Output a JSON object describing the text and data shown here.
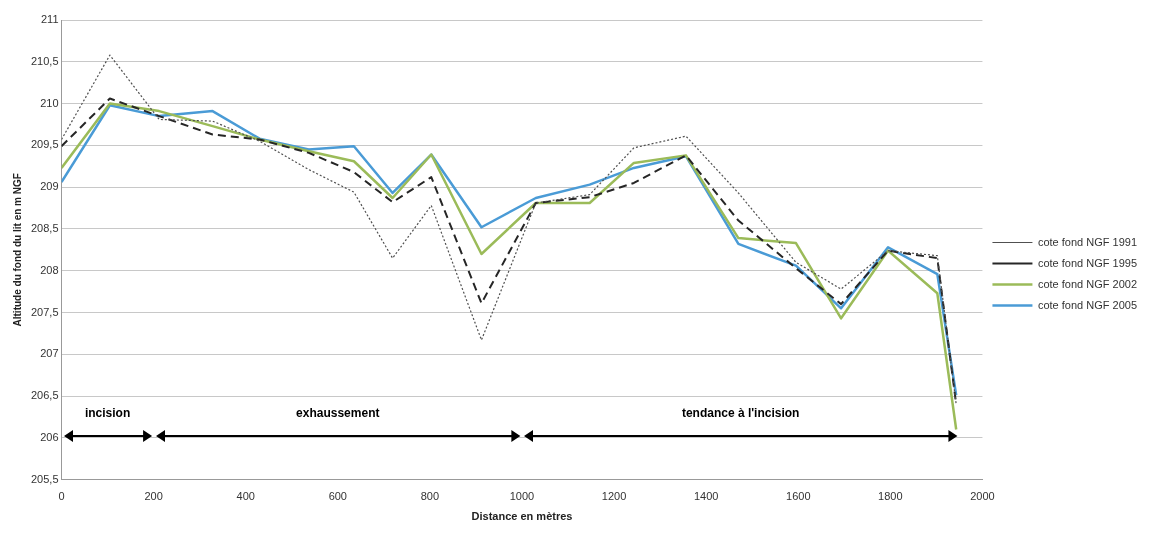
{
  "chart_data": {
    "type": "line",
    "xlabel": "Distance en mètres",
    "ylabel": "Altitude du fond du lit en m NGF",
    "x": [
      0,
      105,
      212,
      328,
      430,
      537,
      635,
      719,
      803,
      912,
      1030,
      1147,
      1243,
      1356,
      1470,
      1595,
      1693,
      1795,
      1902,
      1943
    ],
    "series": [
      {
        "name": "cote fond NGF 1991",
        "color": "#505050",
        "line_style": "dotted",
        "values": [
          209.57,
          210.58,
          209.81,
          209.79,
          209.55,
          209.21,
          208.94,
          208.15,
          208.78,
          207.17,
          208.81,
          208.91,
          209.47,
          209.61,
          208.93,
          208.1,
          207.78,
          208.24,
          208.18,
          206.4
        ]
      },
      {
        "name": "cote fond NGF 1995",
        "color": "#262626",
        "line_style": "dashed",
        "values": [
          209.49,
          210.06,
          209.85,
          209.63,
          209.57,
          209.41,
          209.18,
          208.82,
          209.12,
          207.61,
          208.81,
          208.88,
          209.05,
          209.38,
          208.6,
          208.03,
          207.6,
          208.24,
          208.15,
          206.4
        ]
      },
      {
        "name": "cote fond NGF 2002",
        "color": "#9bbb59",
        "line_style": "solid",
        "values": [
          209.23,
          210.0,
          209.91,
          209.73,
          209.57,
          209.43,
          209.31,
          208.87,
          209.39,
          208.2,
          208.81,
          208.81,
          209.29,
          209.38,
          208.39,
          208.33,
          207.43,
          208.24,
          207.73,
          206.1
        ]
      },
      {
        "name": "cote fond NGF 2005",
        "color": "#4a9bd6",
        "line_style": "solid",
        "values": [
          209.06,
          209.98,
          209.85,
          209.91,
          209.58,
          209.45,
          209.49,
          208.93,
          209.39,
          208.52,
          208.87,
          209.03,
          209.23,
          209.37,
          208.32,
          208.06,
          207.55,
          208.28,
          207.96,
          206.51
        ]
      }
    ],
    "xlim": [
      0,
      2000
    ],
    "xticks": [
      0,
      200,
      400,
      600,
      800,
      1000,
      1200,
      1400,
      1600,
      1800,
      2000
    ],
    "ylim": [
      205.5,
      211
    ],
    "yticks": [
      {
        "value": 205.5,
        "label": "205,5"
      },
      206,
      {
        "value": 206.5,
        "label": "206,5"
      },
      207,
      {
        "value": 207.5,
        "label": "207,5"
      },
      208,
      {
        "value": 208.5,
        "label": "208,5"
      },
      209,
      {
        "value": 209.5,
        "label": "209,5"
      },
      210,
      {
        "value": 210.5,
        "label": "210,5"
      },
      211
    ],
    "grid": "y",
    "legend": "right",
    "marker": "none",
    "annotations": [
      "incision",
      "exhaussement",
      "tendance à l'incision"
    ]
  }
}
